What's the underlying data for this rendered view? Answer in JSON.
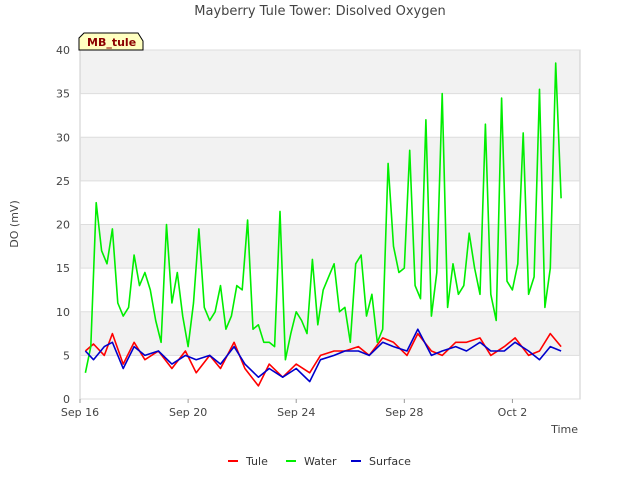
{
  "chart_data": {
    "type": "line",
    "title": "Mayberry Tule Tower: Disolved Oxygen",
    "xlabel": "Time",
    "ylabel": "DO (mV)",
    "badge": "MB_tule",
    "x_range_days": [
      0,
      18.5
    ],
    "xticks": [
      {
        "label": "Sep 16",
        "day": 0
      },
      {
        "label": "Sep 20",
        "day": 4
      },
      {
        "label": "Sep 24",
        "day": 8
      },
      {
        "label": "Sep 28",
        "day": 12
      },
      {
        "label": "Oct 2",
        "day": 16
      }
    ],
    "ylim": [
      0,
      40
    ],
    "yticks": [
      0,
      5,
      10,
      15,
      20,
      25,
      30,
      35,
      40
    ],
    "grid": true,
    "legend_position": "bottom",
    "series": [
      {
        "name": "Tule",
        "color": "#ff0000",
        "x": [
          0.2,
          0.5,
          0.9,
          1.2,
          1.6,
          2.0,
          2.4,
          2.9,
          3.4,
          3.9,
          4.3,
          4.8,
          5.2,
          5.7,
          6.1,
          6.6,
          7.0,
          7.5,
          8.0,
          8.5,
          8.9,
          9.4,
          9.8,
          10.3,
          10.7,
          11.2,
          11.6,
          12.1,
          12.5,
          13.0,
          13.4,
          13.9,
          14.3,
          14.8,
          15.2,
          15.7,
          16.1,
          16.6,
          17.0,
          17.4,
          17.8
        ],
        "y": [
          5.5,
          6.3,
          5.0,
          7.5,
          4.0,
          6.5,
          4.5,
          5.5,
          3.5,
          5.5,
          3.0,
          5.0,
          3.5,
          6.5,
          3.5,
          1.5,
          4.0,
          2.5,
          4.0,
          3.0,
          5.0,
          5.5,
          5.5,
          6.0,
          5.0,
          7.0,
          6.5,
          5.0,
          7.5,
          5.5,
          5.0,
          6.5,
          6.5,
          7.0,
          5.0,
          6.0,
          7.0,
          5.0,
          5.5,
          7.5,
          6.0
        ]
      },
      {
        "name": "Water",
        "color": "#00ee00",
        "x": [
          0.2,
          0.4,
          0.6,
          0.8,
          1.0,
          1.2,
          1.4,
          1.6,
          1.8,
          2.0,
          2.2,
          2.4,
          2.6,
          2.8,
          3.0,
          3.2,
          3.4,
          3.6,
          3.8,
          4.0,
          4.2,
          4.4,
          4.6,
          4.8,
          5.0,
          5.2,
          5.4,
          5.6,
          5.8,
          6.0,
          6.2,
          6.4,
          6.6,
          6.8,
          7.0,
          7.2,
          7.4,
          7.6,
          7.8,
          8.0,
          8.2,
          8.4,
          8.6,
          8.8,
          9.0,
          9.2,
          9.4,
          9.6,
          9.8,
          10.0,
          10.2,
          10.4,
          10.6,
          10.8,
          11.0,
          11.2,
          11.4,
          11.6,
          11.8,
          12.0,
          12.2,
          12.4,
          12.6,
          12.8,
          13.0,
          13.2,
          13.4,
          13.6,
          13.8,
          14.0,
          14.2,
          14.4,
          14.6,
          14.8,
          15.0,
          15.2,
          15.4,
          15.6,
          15.8,
          16.0,
          16.2,
          16.4,
          16.6,
          16.8,
          17.0,
          17.2,
          17.4,
          17.6,
          17.8
        ],
        "y": [
          3.0,
          6.0,
          22.5,
          17.0,
          15.5,
          19.5,
          11.0,
          9.5,
          10.5,
          16.5,
          13.0,
          14.5,
          12.5,
          9.0,
          6.5,
          20.0,
          11.0,
          14.5,
          9.5,
          6.0,
          11.0,
          19.5,
          10.5,
          9.0,
          10.0,
          13.0,
          8.0,
          9.5,
          13.0,
          12.5,
          20.5,
          8.0,
          8.5,
          6.5,
          6.5,
          6.0,
          21.5,
          4.5,
          7.5,
          10.0,
          9.0,
          7.5,
          16.0,
          8.5,
          12.5,
          14.0,
          15.5,
          10.0,
          10.5,
          6.5,
          15.5,
          16.5,
          9.5,
          12.0,
          6.5,
          8.0,
          27.0,
          17.5,
          14.5,
          15.0,
          28.5,
          13.0,
          11.5,
          32.0,
          9.5,
          14.5,
          35.0,
          10.5,
          15.5,
          12.0,
          13.0,
          19.0,
          15.0,
          12.0,
          31.5,
          12.0,
          9.0,
          34.5,
          13.5,
          12.5,
          15.5,
          30.5,
          12.0,
          14.0,
          35.5,
          10.5,
          15.0,
          38.5,
          23.0
        ]
      },
      {
        "name": "Surface",
        "color": "#0000cc",
        "x": [
          0.2,
          0.5,
          0.9,
          1.2,
          1.6,
          2.0,
          2.4,
          2.9,
          3.4,
          3.9,
          4.3,
          4.8,
          5.2,
          5.7,
          6.1,
          6.6,
          7.0,
          7.5,
          8.0,
          8.5,
          8.9,
          9.4,
          9.8,
          10.3,
          10.7,
          11.2,
          11.6,
          12.1,
          12.5,
          13.0,
          13.4,
          13.9,
          14.3,
          14.8,
          15.2,
          15.7,
          16.1,
          16.6,
          17.0,
          17.4,
          17.8
        ],
        "y": [
          5.5,
          4.5,
          6.0,
          6.5,
          3.5,
          6.0,
          5.0,
          5.5,
          4.0,
          5.0,
          4.5,
          5.0,
          4.0,
          6.0,
          4.0,
          2.5,
          3.5,
          2.5,
          3.5,
          2.0,
          4.5,
          5.0,
          5.5,
          5.5,
          5.0,
          6.5,
          6.0,
          5.5,
          8.0,
          5.0,
          5.5,
          6.0,
          5.5,
          6.5,
          5.5,
          5.5,
          6.5,
          5.5,
          4.5,
          6.0,
          5.5
        ]
      }
    ]
  }
}
